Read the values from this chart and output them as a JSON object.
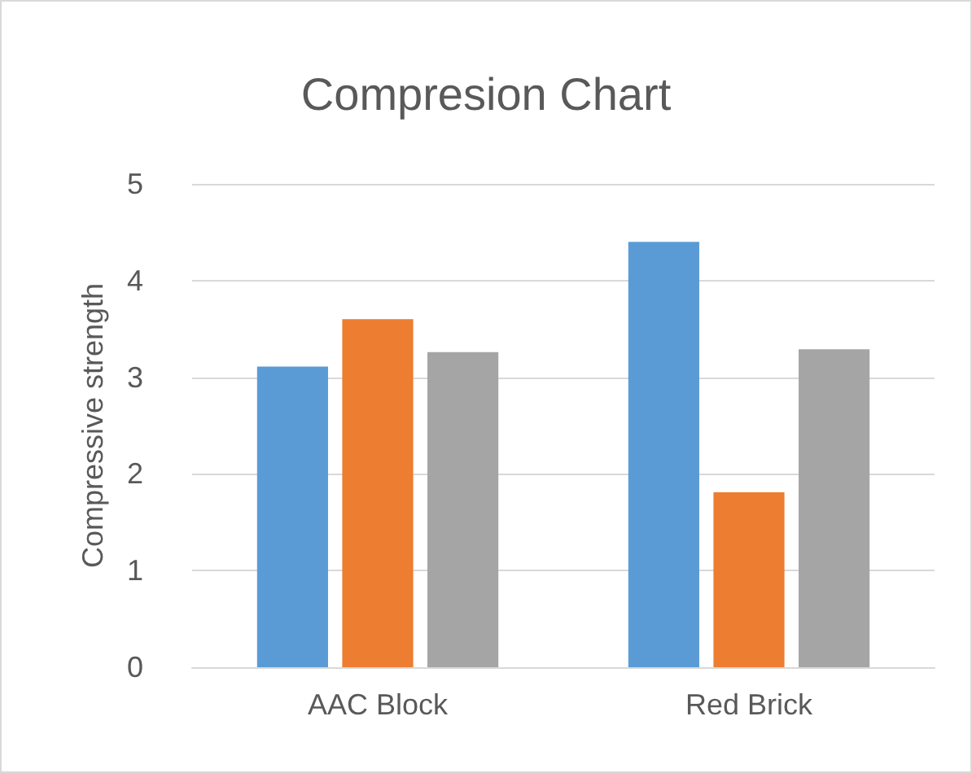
{
  "chart_data": {
    "type": "bar",
    "title": "Compresion Chart",
    "ylabel": "Compressive strength",
    "categories": [
      "AAC Block",
      "Red Brick"
    ],
    "series": [
      {
        "color": "#5b9bd5",
        "values": [
          3.11,
          4.4
        ]
      },
      {
        "color": "#ed7d31",
        "values": [
          3.6,
          1.81
        ]
      },
      {
        "color": "#a5a5a5",
        "values": [
          3.26,
          3.29
        ]
      }
    ],
    "ylim": [
      0,
      5
    ],
    "yticks": [
      0,
      1,
      2,
      3,
      4,
      5
    ],
    "grid": "y"
  }
}
